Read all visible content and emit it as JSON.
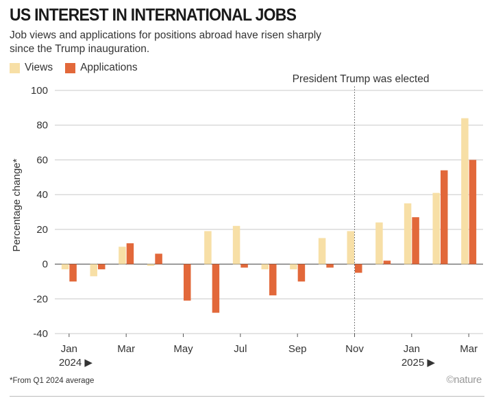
{
  "header": {
    "title": "US INTEREST IN INTERNATIONAL JOBS",
    "subtitle": "Job views and applications for positions abroad have risen sharply since the Trump inauguration."
  },
  "footer": {
    "footnote": "*From Q1 2024 average",
    "brand": "©nature"
  },
  "colors": {
    "views": "#f7dfa6",
    "applications": "#e2683a",
    "grid": "#c8c8c8",
    "axis_text": "#333333"
  },
  "chart_data": {
    "type": "bar",
    "title": "US INTEREST IN INTERNATIONAL JOBS",
    "ylabel": "Percentage change*",
    "xlabel": "",
    "ylim": [
      -40,
      100
    ],
    "yticks": [
      -40,
      -20,
      0,
      20,
      40,
      60,
      80,
      100
    ],
    "grid": true,
    "legend_position": "top-left",
    "categories": [
      "Jan 2024",
      "Feb 2024",
      "Mar 2024",
      "Apr 2024",
      "May 2024",
      "Jun 2024",
      "Jul 2024",
      "Aug 2024",
      "Sep 2024",
      "Oct 2024",
      "Nov 2024",
      "Dec 2024",
      "Jan 2025",
      "Feb 2025",
      "Mar 2025"
    ],
    "tick_labels": [
      "Jan",
      "",
      "Mar",
      "",
      "May",
      "",
      "Jul",
      "",
      "Sep",
      "",
      "Nov",
      "",
      "Jan",
      "",
      "Mar"
    ],
    "year_labels": [
      {
        "category_index": 0,
        "label": "2024 ▶"
      },
      {
        "category_index": 12,
        "label": "2025 ▶"
      }
    ],
    "series": [
      {
        "name": "Views",
        "values": [
          -3,
          -7,
          10,
          -1,
          0,
          19,
          22,
          -3,
          -3,
          15,
          19,
          24,
          35,
          41,
          84
        ]
      },
      {
        "name": "Applications",
        "values": [
          -10,
          -3,
          12,
          6,
          -21,
          -28,
          -2,
          -18,
          -10,
          -2,
          -5,
          2,
          27,
          54,
          60
        ]
      }
    ],
    "annotations": [
      {
        "text": "President Trump was elected",
        "category_index": 10,
        "type": "vertical-dashed-line"
      }
    ]
  }
}
